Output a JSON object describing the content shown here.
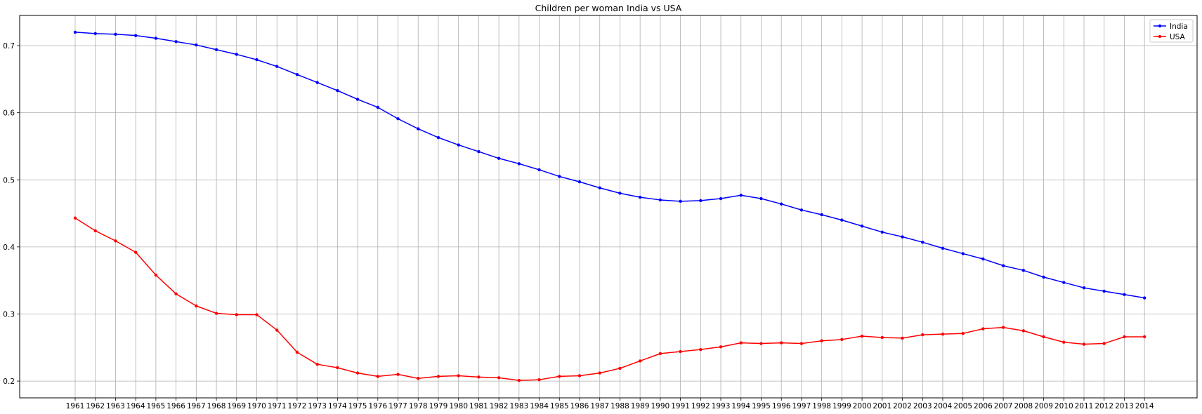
{
  "chart_data": {
    "type": "line",
    "title": "Children per woman India vs USA",
    "xlabel": "",
    "ylabel": "",
    "x": [
      1961,
      1962,
      1963,
      1964,
      1965,
      1966,
      1967,
      1968,
      1969,
      1970,
      1971,
      1972,
      1973,
      1974,
      1975,
      1976,
      1977,
      1978,
      1979,
      1980,
      1981,
      1982,
      1983,
      1984,
      1985,
      1986,
      1987,
      1988,
      1989,
      1990,
      1991,
      1992,
      1993,
      1994,
      1995,
      1996,
      1997,
      1998,
      1999,
      2000,
      2001,
      2002,
      2003,
      2004,
      2005,
      2006,
      2007,
      2008,
      2009,
      2010,
      2011,
      2012,
      2013,
      2014
    ],
    "ylim": [
      0.175,
      0.745
    ],
    "yticks": [
      0.2,
      0.3,
      0.4,
      0.5,
      0.6,
      0.7
    ],
    "grid": true,
    "legend_position": "top-right",
    "series": [
      {
        "name": "India",
        "color": "#0000ff",
        "marker": "dot",
        "values": [
          0.72,
          0.718,
          0.717,
          0.715,
          0.711,
          0.706,
          0.701,
          0.694,
          0.687,
          0.679,
          0.669,
          0.657,
          0.645,
          0.633,
          0.62,
          0.608,
          0.591,
          0.576,
          0.563,
          0.552,
          0.542,
          0.532,
          0.524,
          0.515,
          0.505,
          0.497,
          0.488,
          0.48,
          0.474,
          0.47,
          0.468,
          0.469,
          0.472,
          0.477,
          0.472,
          0.464,
          0.455,
          0.448,
          0.44,
          0.431,
          0.422,
          0.415,
          0.407,
          0.398,
          0.39,
          0.382,
          0.372,
          0.365,
          0.355,
          0.347,
          0.339,
          0.334,
          0.329,
          0.324
        ]
      },
      {
        "name": "USA",
        "color": "#ff0000",
        "marker": "dot",
        "values": [
          0.443,
          0.424,
          0.409,
          0.392,
          0.358,
          0.33,
          0.312,
          0.301,
          0.299,
          0.299,
          0.276,
          0.243,
          0.225,
          0.22,
          0.212,
          0.207,
          0.21,
          0.204,
          0.207,
          0.208,
          0.206,
          0.205,
          0.201,
          0.202,
          0.207,
          0.208,
          0.212,
          0.219,
          0.23,
          0.241,
          0.244,
          0.247,
          0.251,
          0.257,
          0.256,
          0.257,
          0.256,
          0.26,
          0.262,
          0.267,
          0.265,
          0.264,
          0.269,
          0.27,
          0.271,
          0.278,
          0.28,
          0.275,
          0.266,
          0.258,
          0.255,
          0.256,
          0.266,
          0.266
        ]
      }
    ]
  }
}
